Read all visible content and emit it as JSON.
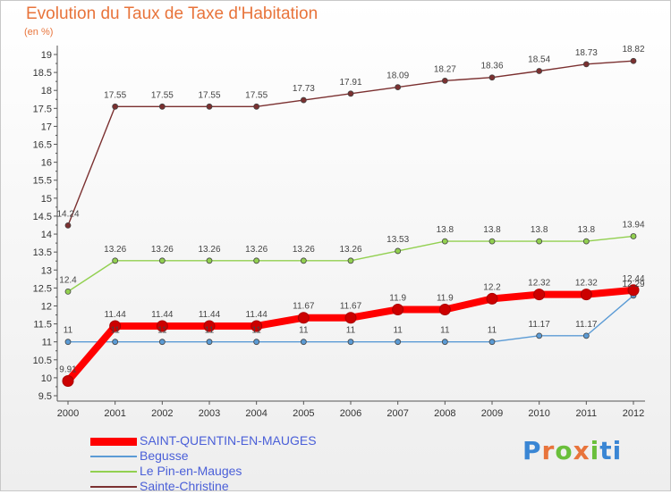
{
  "header": {
    "title": "Evolution du Taux de Taxe d'Habitation",
    "unit": "(en %)"
  },
  "chart_data": {
    "type": "line",
    "title": "Evolution du Taux de Taxe d'Habitation",
    "ylabel": "(en %)",
    "xlabel": "",
    "x": [
      "2000",
      "2001",
      "2002",
      "2003",
      "2004",
      "2005",
      "2006",
      "2007",
      "2008",
      "2009",
      "2010",
      "2011",
      "2012"
    ],
    "ylim": [
      9.5,
      19
    ],
    "yticks": [
      "9.5",
      "10",
      "10.5",
      "11",
      "11.5",
      "12",
      "12.5",
      "13",
      "13.5",
      "14",
      "14.5",
      "15",
      "15.5",
      "16",
      "16.5",
      "17",
      "17.5",
      "18",
      "18.5",
      "19"
    ],
    "grid": false,
    "legend_position": "bottom-left",
    "series": [
      {
        "name": "SAINT-QUENTIN-EN-MAUGES",
        "color": "#ff0000",
        "emphasis": true,
        "values": [
          9.91,
          11.44,
          11.44,
          11.44,
          11.44,
          11.67,
          11.67,
          11.9,
          11.9,
          12.2,
          12.32,
          12.32,
          12.44
        ],
        "labels": [
          "9.91",
          "11.44",
          "11.44",
          "11.44",
          "11.44",
          "11.67",
          "11.67",
          "11.9",
          "11.9",
          "12.2",
          "12.32",
          "12.32",
          "12.44"
        ]
      },
      {
        "name": "Begusse",
        "color": "#5b9bd5",
        "emphasis": false,
        "values": [
          11,
          11,
          11,
          11,
          11,
          11,
          11,
          11,
          11,
          11,
          11.17,
          11.17,
          12.29
        ],
        "labels": [
          "11",
          "11",
          "11",
          "11",
          "11",
          "11",
          "11",
          "11",
          "11",
          "11",
          "11.17",
          "11.17",
          "12.29"
        ]
      },
      {
        "name": "Le Pin-en-Mauges",
        "color": "#92d050",
        "emphasis": false,
        "values": [
          12.4,
          13.26,
          13.26,
          13.26,
          13.26,
          13.26,
          13.26,
          13.53,
          13.8,
          13.8,
          13.8,
          13.8,
          13.94
        ],
        "labels": [
          "12.4",
          "13.26",
          "13.26",
          "13.26",
          "13.26",
          "13.26",
          "13.26",
          "13.53",
          "13.8",
          "13.8",
          "13.8",
          "13.8",
          "13.94"
        ]
      },
      {
        "name": "Sainte-Christine",
        "color": "#7b3030",
        "emphasis": false,
        "values": [
          14.24,
          17.55,
          17.55,
          17.55,
          17.55,
          17.73,
          17.91,
          18.09,
          18.27,
          18.36,
          18.54,
          18.73,
          18.82
        ],
        "labels": [
          "14.24",
          "17.55",
          "17.55",
          "17.55",
          "17.55",
          "17.73",
          "17.91",
          "18.09",
          "18.27",
          "18.36",
          "18.54",
          "18.73",
          "18.82"
        ]
      }
    ]
  },
  "legend": {
    "items": [
      {
        "label": "SAINT-QUENTIN-EN-MAUGES",
        "color": "#ff0000"
      },
      {
        "label": "Begusse",
        "color": "#5b9bd5"
      },
      {
        "label": "Le Pin-en-Mauges",
        "color": "#92d050"
      },
      {
        "label": "Sainte-Christine",
        "color": "#7b3030"
      }
    ]
  },
  "logo": {
    "text": "Proxiti",
    "colors": [
      "#3a86d4",
      "#e8743b",
      "#6abf3b",
      "#e8743b",
      "#6abf3b",
      "#3a86d4",
      "#3a86d4"
    ]
  }
}
